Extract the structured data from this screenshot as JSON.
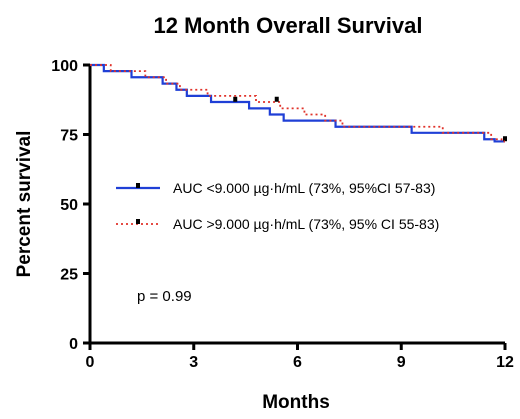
{
  "chart_data": {
    "type": "line",
    "title": "12 Month Overall Survival",
    "xlabel": "Months",
    "ylabel": "Percent survival",
    "xlim": [
      0,
      12
    ],
    "ylim": [
      0,
      100
    ],
    "x_ticks": [
      "0",
      "3",
      "6",
      "9",
      "12"
    ],
    "y_ticks": [
      "0",
      "25",
      "50",
      "75",
      "100"
    ],
    "x_tick_values": [
      0,
      3,
      6,
      9,
      12
    ],
    "y_tick_values": [
      0,
      25,
      50,
      75,
      100
    ],
    "annotation": "p = 0.99",
    "legend_position": "center-left",
    "series": [
      {
        "name": "AUC <9.000 µg·h/mL (73%, 95%CI 57-83)",
        "color": "#1f3fd6",
        "style": "solid",
        "steps": [
          [
            0,
            100
          ],
          [
            0.4,
            97.8
          ],
          [
            1.2,
            95.6
          ],
          [
            2.1,
            93.3
          ],
          [
            2.5,
            91.1
          ],
          [
            2.8,
            88.9
          ],
          [
            3.5,
            86.7
          ],
          [
            4.6,
            84.4
          ],
          [
            5.2,
            82.2
          ],
          [
            5.6,
            80.0
          ],
          [
            5.8,
            80.0
          ],
          [
            7.1,
            77.8
          ],
          [
            9.3,
            75.6
          ],
          [
            11.4,
            73.3
          ],
          [
            11.7,
            72.5
          ],
          [
            12,
            72.5
          ]
        ],
        "censored": [
          [
            4.2,
            87.5
          ],
          [
            12,
            73.3
          ]
        ]
      },
      {
        "name": "AUC >9.000 µg·h/mL (73%, 95% CI 55-83)",
        "color": "#e0322a",
        "style": "dotted",
        "steps": [
          [
            0,
            100
          ],
          [
            0.6,
            97.8
          ],
          [
            1.6,
            95.6
          ],
          [
            2.2,
            93.3
          ],
          [
            2.6,
            91.1
          ],
          [
            3.4,
            88.9
          ],
          [
            4.8,
            86.7
          ],
          [
            5.5,
            84.4
          ],
          [
            6.2,
            82.2
          ],
          [
            6.8,
            80.0
          ],
          [
            7.3,
            77.8
          ],
          [
            10.2,
            75.6
          ],
          [
            11.6,
            73.3
          ],
          [
            11.9,
            72.5
          ],
          [
            12,
            72.5
          ]
        ],
        "censored": [
          [
            5.4,
            87.5
          ]
        ]
      }
    ]
  }
}
